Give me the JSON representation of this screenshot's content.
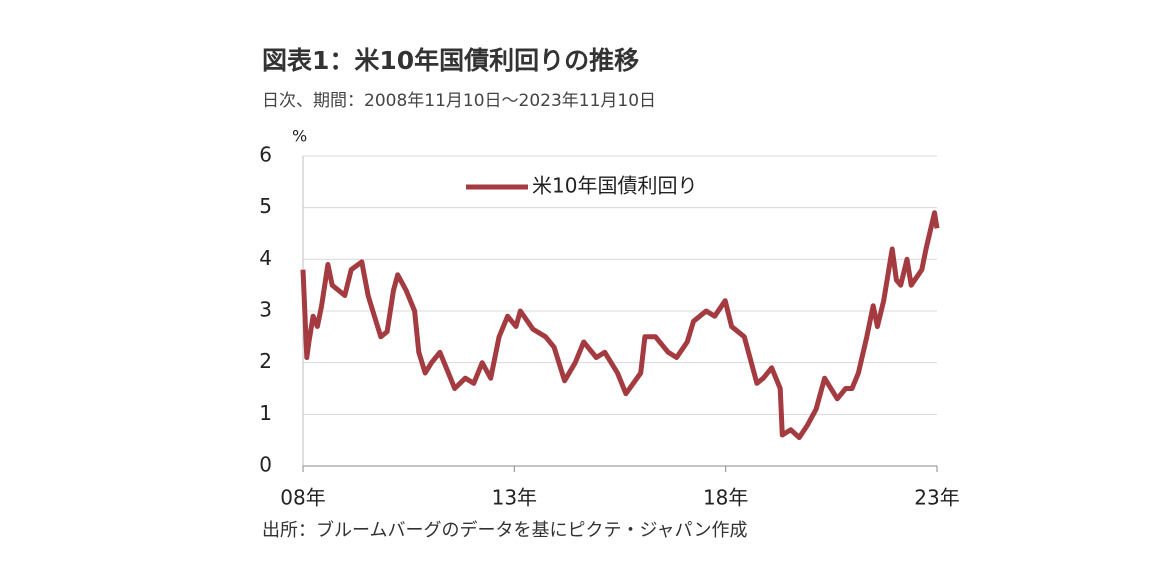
{
  "chart_data": {
    "type": "line",
    "title": "図表1：米10年国債利回りの推移",
    "subtitle": "日次、期間：2008年11月10日～2023年11月10日",
    "y_label": "%",
    "source": "出所：ブルームバーグのデータを基にピクテ・ジャパン作成",
    "legend": "top",
    "grid": true,
    "xlim": [
      2008.86,
      2023.86
    ],
    "ylim": [
      0,
      6
    ],
    "yticks": [
      0,
      1,
      2,
      3,
      4,
      5,
      6
    ],
    "xticks": [
      {
        "value": 2008.86,
        "label": "08年"
      },
      {
        "value": 2013.86,
        "label": "13年"
      },
      {
        "value": 2018.86,
        "label": "18年"
      },
      {
        "value": 2023.86,
        "label": "23年"
      }
    ],
    "series": [
      {
        "name": "米10年国債利回り",
        "color": "#a33b40",
        "x": [
          2008.86,
          2008.95,
          2009.0,
          2009.1,
          2009.2,
          2009.3,
          2009.45,
          2009.55,
          2009.7,
          2009.85,
          2010.0,
          2010.25,
          2010.4,
          2010.55,
          2010.7,
          2010.85,
          2011.0,
          2011.1,
          2011.3,
          2011.5,
          2011.6,
          2011.75,
          2011.9,
          2012.1,
          2012.3,
          2012.45,
          2012.7,
          2012.9,
          2013.1,
          2013.3,
          2013.5,
          2013.7,
          2013.9,
          2014.0,
          2014.3,
          2014.6,
          2014.8,
          2015.05,
          2015.3,
          2015.5,
          2015.8,
          2016.0,
          2016.3,
          2016.5,
          2016.85,
          2016.95,
          2017.2,
          2017.5,
          2017.7,
          2017.95,
          2018.1,
          2018.4,
          2018.6,
          2018.85,
          2019.0,
          2019.3,
          2019.6,
          2019.75,
          2019.95,
          2020.15,
          2020.2,
          2020.4,
          2020.6,
          2020.8,
          2021.0,
          2021.2,
          2021.5,
          2021.7,
          2021.85,
          2022.0,
          2022.2,
          2022.35,
          2022.45,
          2022.6,
          2022.8,
          2022.9,
          2023.0,
          2023.15,
          2023.25,
          2023.5,
          2023.6,
          2023.8,
          2023.86
        ],
        "values": [
          3.8,
          2.1,
          2.4,
          2.9,
          2.7,
          3.1,
          3.9,
          3.5,
          3.4,
          3.3,
          3.8,
          3.95,
          3.3,
          2.9,
          2.5,
          2.6,
          3.4,
          3.7,
          3.4,
          3.0,
          2.2,
          1.8,
          2.0,
          2.2,
          1.8,
          1.5,
          1.7,
          1.6,
          2.0,
          1.7,
          2.5,
          2.9,
          2.7,
          3.0,
          2.65,
          2.5,
          2.3,
          1.65,
          2.0,
          2.4,
          2.1,
          2.2,
          1.8,
          1.4,
          1.8,
          2.5,
          2.5,
          2.2,
          2.1,
          2.4,
          2.8,
          3.0,
          2.9,
          3.2,
          2.7,
          2.5,
          1.6,
          1.7,
          1.9,
          1.5,
          0.6,
          0.7,
          0.55,
          0.8,
          1.1,
          1.7,
          1.3,
          1.5,
          1.5,
          1.8,
          2.5,
          3.1,
          2.7,
          3.2,
          4.2,
          3.6,
          3.5,
          4.0,
          3.5,
          3.8,
          4.2,
          4.9,
          4.6
        ]
      }
    ]
  }
}
